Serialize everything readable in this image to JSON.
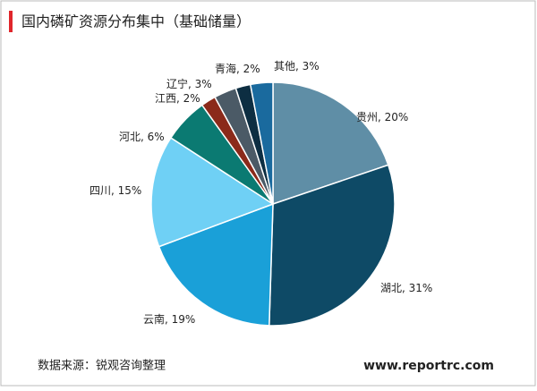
{
  "chart_data": {
    "type": "pie",
    "title": "国内磷矿资源分布集中（基础储量）",
    "categories": [
      "贵州",
      "湖北",
      "云南",
      "四川",
      "河北",
      "江西",
      "辽宁",
      "青海",
      "其他"
    ],
    "values": [
      20,
      31,
      19,
      15,
      6,
      2,
      3,
      2,
      3
    ],
    "value_labels": [
      ", 20%",
      ", 31%",
      ", 19%",
      ", 15%",
      ", 6%",
      ", 2%",
      ", 3%",
      ", 2%",
      ", 3%"
    ],
    "colors": [
      "#5f8ea6",
      "#0e4a66",
      "#1aa0d8",
      "#6fd0f5",
      "#0b7a72",
      "#8b2a1a",
      "#4b5a66",
      "#0d2e42",
      "#1a6a9e"
    ],
    "source": "数据来源：锐观咨询整理",
    "website": "www.reportrc.com"
  }
}
